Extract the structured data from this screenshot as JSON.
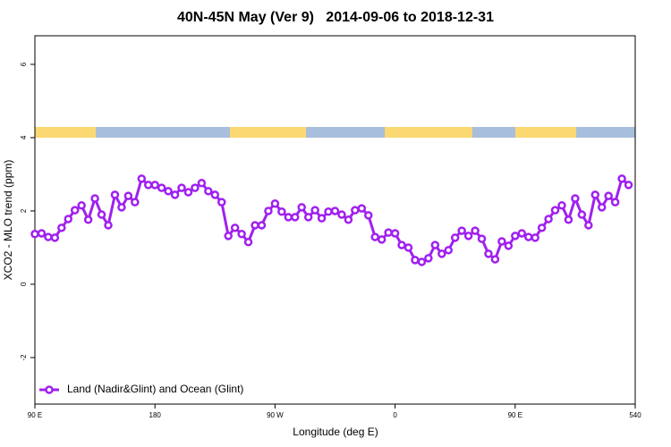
{
  "chart_data": {
    "type": "line",
    "title": "40N-45N May (Ver 9)   2014-09-06 to 2018-12-31",
    "xlabel": "Longitude (deg E)",
    "ylabel": "XCO2 - MLO trend (ppm)",
    "x": [
      90,
      95,
      100,
      105,
      110,
      115,
      120,
      125,
      130,
      135,
      140,
      145,
      150,
      155,
      160,
      165,
      170,
      175,
      180,
      185,
      190,
      195,
      200,
      205,
      210,
      215,
      220,
      225,
      230,
      235,
      240,
      245,
      250,
      255,
      260,
      265,
      270,
      275,
      280,
      285,
      290,
      295,
      300,
      305,
      310,
      315,
      320,
      325,
      330,
      335,
      340,
      345,
      350,
      355,
      360,
      365,
      370,
      375,
      380,
      385,
      390,
      395,
      400,
      405,
      410,
      415,
      420,
      425,
      430,
      435,
      440,
      445,
      450,
      455,
      460,
      465,
      470,
      475,
      480,
      485,
      490,
      495,
      500,
      505,
      510,
      515,
      520,
      525,
      530,
      535
    ],
    "series": [
      {
        "name": "Land (Nadir&Glint) and Ocean (Glint)",
        "color": "#a020f0",
        "values": [
          1.37,
          1.39,
          1.29,
          1.27,
          1.54,
          1.78,
          2.02,
          2.15,
          1.76,
          2.34,
          1.9,
          1.61,
          2.44,
          2.1,
          2.41,
          2.24,
          2.88,
          2.71,
          2.71,
          2.63,
          2.54,
          2.44,
          2.63,
          2.51,
          2.63,
          2.76,
          2.54,
          2.44,
          2.24,
          1.32,
          1.54,
          1.37,
          1.15,
          1.61,
          1.61,
          2.0,
          2.2,
          1.98,
          1.83,
          1.83,
          2.1,
          1.83,
          2.02,
          1.8,
          1.98,
          2.0,
          1.9,
          1.76,
          2.02,
          2.07,
          1.88,
          1.29,
          1.22,
          1.41,
          1.39,
          1.07,
          1.0,
          0.66,
          0.61,
          0.71,
          1.07,
          0.83,
          0.93,
          1.27,
          1.46,
          1.32,
          1.46,
          1.24,
          0.83,
          0.68,
          1.17,
          1.05,
          1.32,
          1.39,
          1.29,
          1.27,
          1.54,
          1.78,
          2.02,
          2.15,
          1.76,
          2.34,
          1.9,
          1.61,
          2.44,
          2.1,
          2.41,
          2.24,
          2.88,
          2.71
        ]
      }
    ],
    "xlim": [
      90,
      540
    ],
    "xticks": [
      {
        "value": 90,
        "label": "90 E"
      },
      180,
      {
        "value": 270,
        "label": "90 W"
      },
      {
        "value": 360,
        "label": "0"
      },
      {
        "value": 450,
        "label": "90 E"
      },
      540
    ],
    "ylim": [
      -3.27,
      6.78
    ],
    "yticks": [
      -2,
      0,
      2,
      4,
      6
    ],
    "grid": false,
    "legend_position": "bottom-left"
  }
}
